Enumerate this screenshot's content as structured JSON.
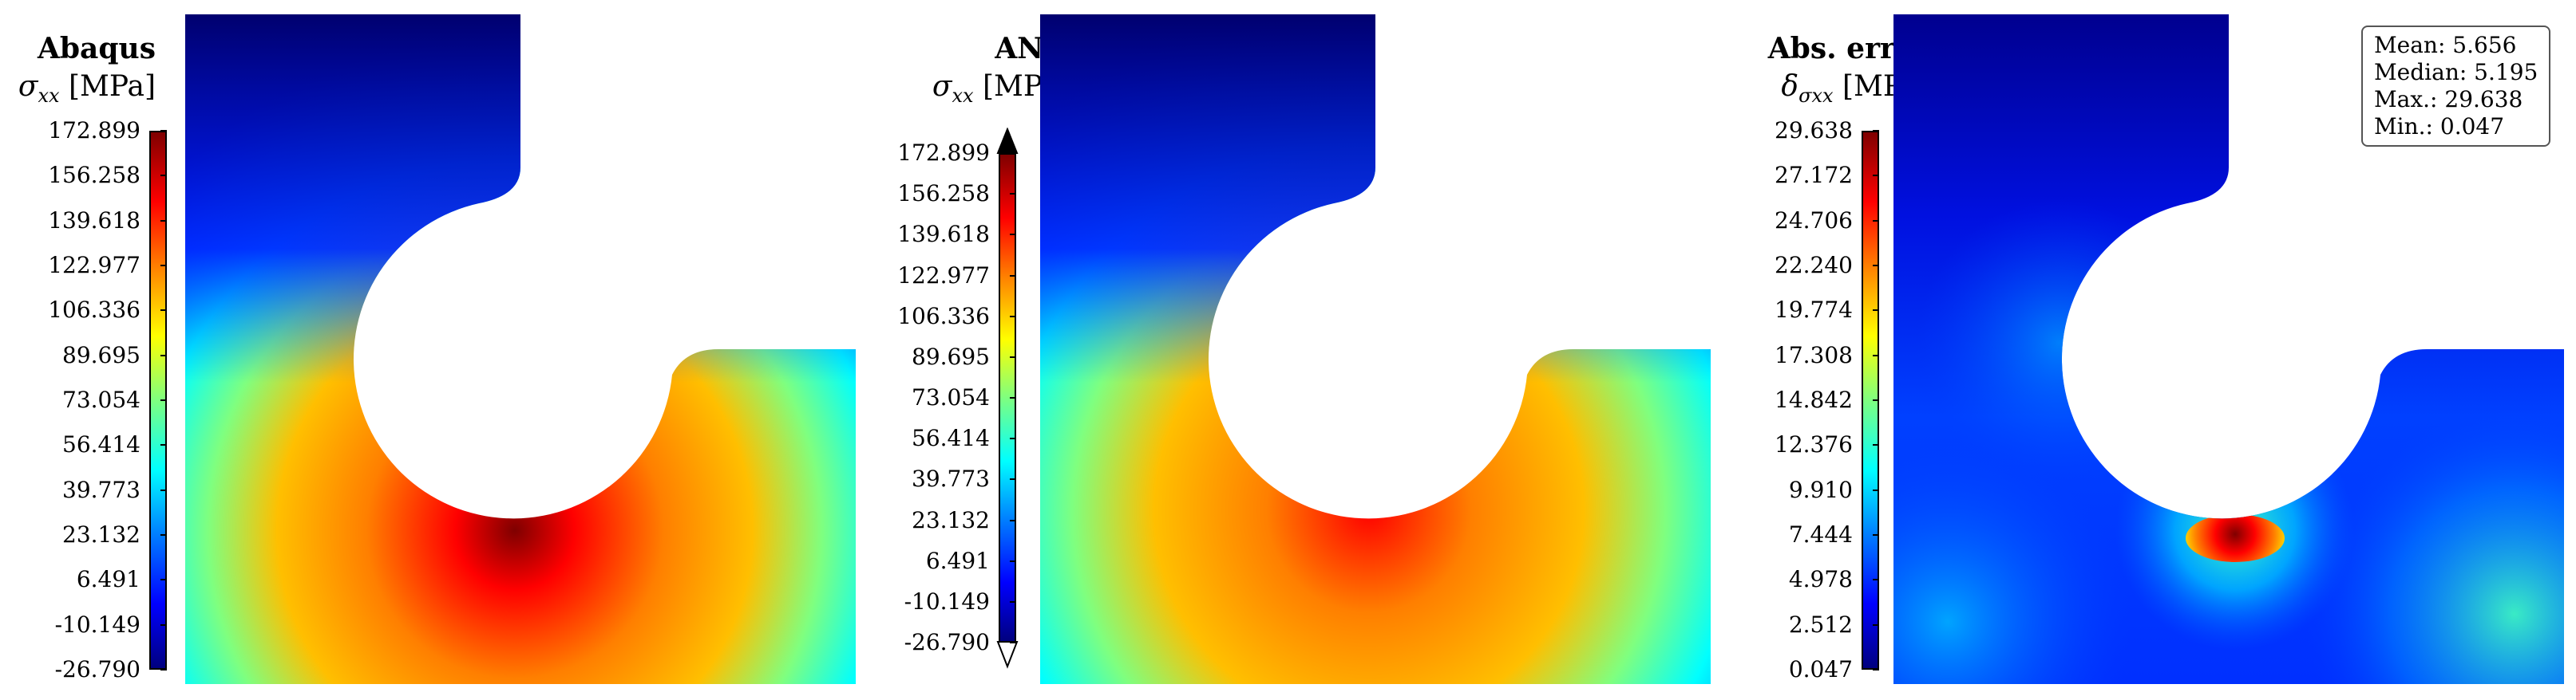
{
  "colors": {
    "jet": [
      "#00007f",
      "#0000ff",
      "#007fff",
      "#00ffff",
      "#7fff7f",
      "#ffff00",
      "#ff7f00",
      "#ff0000",
      "#7f0000"
    ]
  },
  "panels": [
    {
      "title": "Abaqus",
      "symbol": "σ",
      "subscript": "xx",
      "unit": "[MPa]",
      "ticks": [
        "172.899",
        "156.258",
        "139.618",
        "122.977",
        "106.336",
        "89.695",
        "73.054",
        "56.414",
        "39.773",
        "23.132",
        "6.491",
        "-10.149",
        "-26.790"
      ],
      "extend_arrows": false
    },
    {
      "title": "ANN",
      "symbol": "σ",
      "subscript": "xx",
      "unit": "[MPa]",
      "ticks": [
        "172.899",
        "156.258",
        "139.618",
        "122.977",
        "106.336",
        "89.695",
        "73.054",
        "56.414",
        "39.773",
        "23.132",
        "6.491",
        "-10.149",
        "-26.790"
      ],
      "extend_arrows": true
    },
    {
      "title": "Abs. error",
      "symbol": "δ",
      "subscript": "σxx",
      "unit": "[MPa]",
      "ticks": [
        "29.638",
        "27.172",
        "24.706",
        "22.240",
        "19.774",
        "17.308",
        "14.842",
        "12.376",
        "9.910",
        "7.444",
        "4.978",
        "2.512",
        "0.047"
      ],
      "extend_arrows": false
    }
  ],
  "stats": {
    "mean": "Mean: 5.656",
    "median": "Median: 5.195",
    "max": "Max.: 29.638",
    "min": "Min.: 0.047"
  }
}
